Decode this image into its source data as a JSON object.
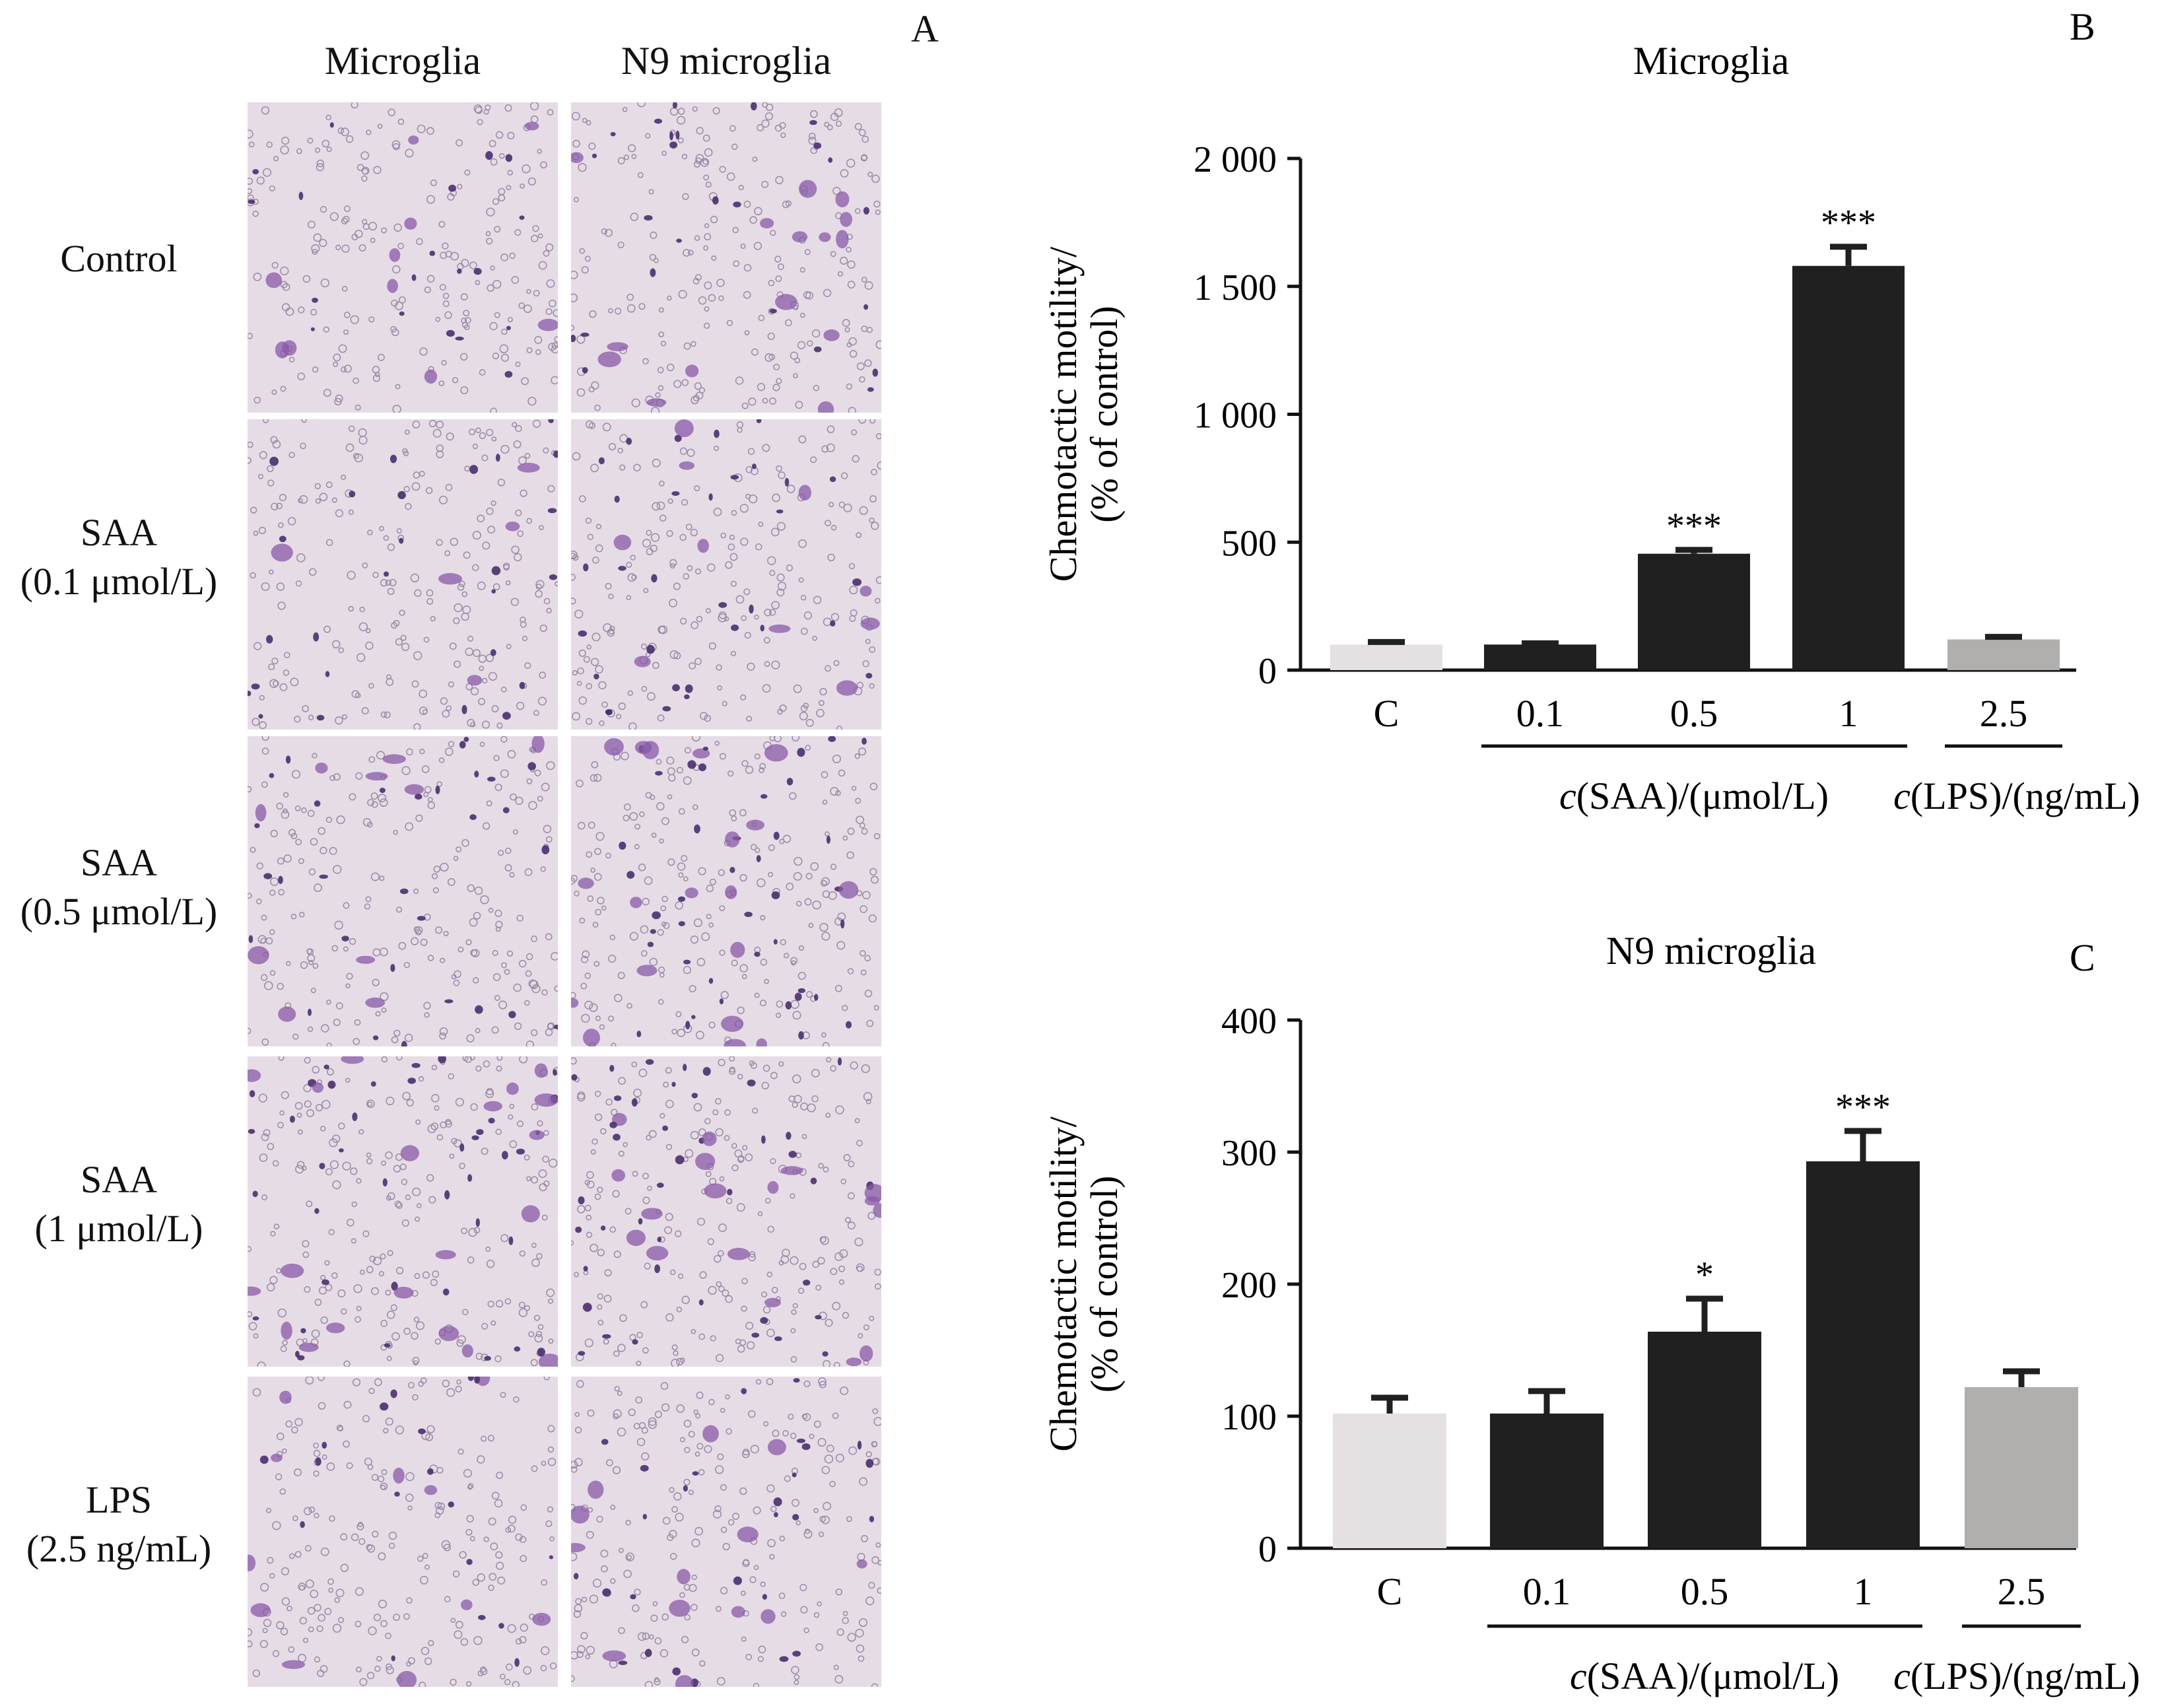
{
  "panel_a": {
    "letter": "A",
    "columns": [
      "Microglia",
      "N9 microglia"
    ],
    "rows": [
      {
        "lines": [
          "Control"
        ]
      },
      {
        "lines": [
          "SAA",
          "(0.1 μmol/L)"
        ]
      },
      {
        "lines": [
          "SAA",
          "(0.5 μmol/L)"
        ]
      },
      {
        "lines": [
          "SAA",
          "(1 μmol/L)"
        ]
      },
      {
        "lines": [
          "LPS",
          "(2.5 ng/mL)"
        ]
      }
    ],
    "stain_colors": {
      "background": "#e6dce6",
      "cell": "#4a2f6e",
      "large_cell": "#8a5aa8"
    },
    "relative_cell_density": [
      [
        0.3,
        0.55
      ],
      [
        0.35,
        0.6
      ],
      [
        0.55,
        1.0
      ],
      [
        1.0,
        0.95
      ],
      [
        0.3,
        0.55
      ]
    ]
  },
  "chart_data": [
    {
      "panel": "B",
      "type": "bar",
      "title": "Microglia",
      "ylabel": [
        "Chemotactic motility/",
        "(% of control)"
      ],
      "ylim": [
        0,
        2000
      ],
      "yticks": [
        0,
        500,
        1000,
        1500,
        2000
      ],
      "ytick_labels": [
        "0",
        "500",
        "1 000",
        "1 500",
        "2 000"
      ],
      "categories": [
        "C",
        "0.1",
        "0.5",
        "1",
        "2.5"
      ],
      "values": [
        100,
        100,
        455,
        1580,
        120
      ],
      "errors": [
        10,
        5,
        15,
        75,
        10
      ],
      "significance": [
        "",
        "",
        "***",
        "***",
        ""
      ],
      "colors": [
        "#e5e0e2",
        "#1f201f",
        "#1f201f",
        "#1f201f",
        "#b1afae"
      ],
      "group_labels": [
        {
          "text_italic": "c",
          "text": "(SAA)/(μmol/L)",
          "span": [
            1,
            3
          ]
        },
        {
          "text_italic": "c",
          "text": "(LPS)/(ng/mL)",
          "span": [
            4,
            4
          ]
        }
      ]
    },
    {
      "panel": "C",
      "type": "bar",
      "title": "N9 microglia",
      "ylabel": [
        "Chemotactic motility/",
        "(% of control)"
      ],
      "ylim": [
        0,
        400
      ],
      "yticks": [
        0,
        100,
        200,
        300,
        400
      ],
      "ytick_labels": [
        "0",
        "100",
        "200",
        "300",
        "400"
      ],
      "categories": [
        "C",
        "0.1",
        "0.5",
        "1",
        "2.5"
      ],
      "values": [
        102,
        102,
        164,
        293,
        122
      ],
      "errors": [
        12,
        17,
        25,
        23,
        12
      ],
      "significance": [
        "",
        "",
        "*",
        "***",
        ""
      ],
      "colors": [
        "#e5e0e2",
        "#1f201f",
        "#1f201f",
        "#1f201f",
        "#b1afae"
      ],
      "group_labels": [
        {
          "text_italic": "c",
          "text": "(SAA)/(μmol/L)",
          "span": [
            1,
            3
          ]
        },
        {
          "text_italic": "c",
          "text": "(LPS)/(ng/mL)",
          "span": [
            4,
            4
          ]
        }
      ]
    }
  ]
}
